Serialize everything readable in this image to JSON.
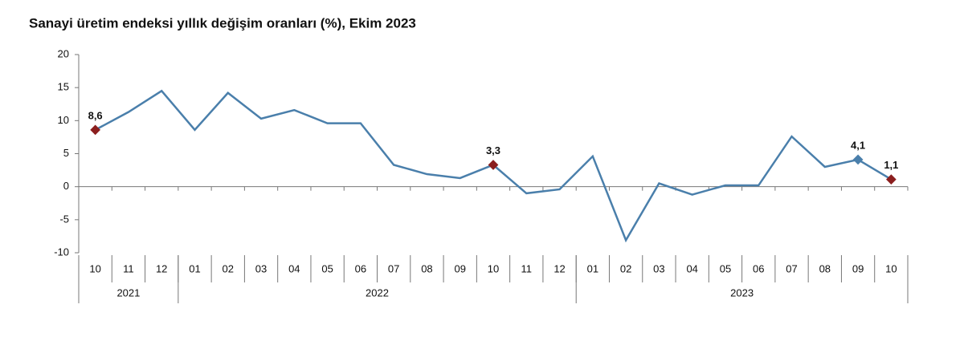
{
  "chart_data": {
    "type": "line",
    "title": "Sanayi üretim endeksi yıllık değişim oranları (%), Ekim 2023",
    "categories": [
      "10",
      "11",
      "12",
      "01",
      "02",
      "03",
      "04",
      "05",
      "06",
      "07",
      "08",
      "09",
      "10",
      "11",
      "12",
      "01",
      "02",
      "03",
      "04",
      "05",
      "06",
      "07",
      "08",
      "09",
      "10"
    ],
    "groups": [
      {
        "label": "2021",
        "count": 3
      },
      {
        "label": "2022",
        "count": 12
      },
      {
        "label": "2023",
        "count": 10
      }
    ],
    "values": [
      8.6,
      11.3,
      14.5,
      8.6,
      14.2,
      10.3,
      11.6,
      9.6,
      9.6,
      3.3,
      1.9,
      1.3,
      3.3,
      -1.0,
      -0.4,
      4.6,
      -8.1,
      0.5,
      -1.2,
      0.2,
      0.2,
      7.6,
      3.0,
      4.1,
      1.1
    ],
    "value_labels": [
      "8,6",
      null,
      null,
      null,
      null,
      null,
      null,
      null,
      null,
      null,
      null,
      null,
      "3,3",
      null,
      null,
      null,
      null,
      null,
      null,
      null,
      null,
      null,
      null,
      "4,1",
      "1,1"
    ],
    "marker_colors": [
      "#8b1e1e",
      null,
      null,
      null,
      null,
      null,
      null,
      null,
      null,
      null,
      null,
      null,
      "#8b1e1e",
      null,
      null,
      null,
      null,
      null,
      null,
      null,
      null,
      null,
      null,
      "#4a7fab",
      "#8b1e1e"
    ],
    "color": "#4a7fab",
    "ylim": [
      -10,
      20
    ],
    "yticks": [
      -10,
      -5,
      0,
      5,
      10,
      15,
      20
    ],
    "grid": false
  }
}
